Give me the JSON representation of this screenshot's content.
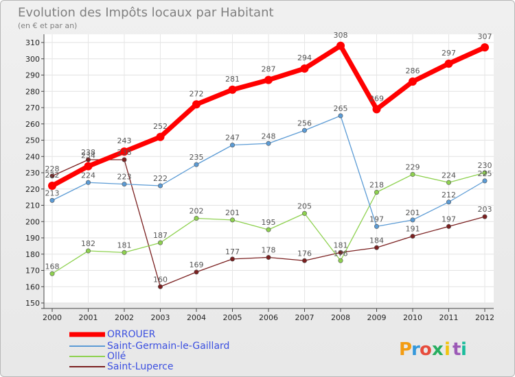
{
  "chart_data": {
    "type": "line",
    "title": "Evolution des Impôts locaux par Habitant",
    "subtitle": "(en € et par an)",
    "categories": [
      "2000",
      "2001",
      "2002",
      "2003",
      "2004",
      "2005",
      "2006",
      "2007",
      "2008",
      "2009",
      "2010",
      "2011",
      "2012"
    ],
    "ylim": [
      150,
      310
    ],
    "yticks": [
      150,
      160,
      170,
      180,
      190,
      200,
      210,
      220,
      230,
      240,
      250,
      260,
      270,
      280,
      290,
      300,
      310
    ],
    "grid": true,
    "legend_position": "bottom-left",
    "series": [
      {
        "name": "ORROUER",
        "color": "#ff0000",
        "values": [
          222,
          234,
          243,
          252,
          272,
          281,
          287,
          294,
          308,
          269,
          286,
          297,
          307
        ]
      },
      {
        "name": "Saint-Germain-le-Gaillard",
        "color": "#5b9bd5",
        "values": [
          213,
          224,
          223,
          222,
          235,
          247,
          248,
          256,
          265,
          197,
          201,
          212,
          225
        ]
      },
      {
        "name": "Ollé",
        "color": "#8ed14f",
        "values": [
          168,
          182,
          181,
          187,
          202,
          201,
          195,
          205,
          176,
          218,
          229,
          224,
          230
        ]
      },
      {
        "name": "Saint-Luperce",
        "color": "#7a1f1f",
        "values": [
          228,
          238,
          238,
          160,
          169,
          177,
          178,
          176,
          181,
          184,
          191,
          197,
          203
        ]
      }
    ]
  },
  "logo": {
    "letters": [
      "P",
      "r",
      "o",
      "x",
      "i",
      "t",
      "i"
    ],
    "colors": [
      "#f39c12",
      "#3498db",
      "#e74c3c",
      "#27ae60",
      "#f1c40f",
      "#9b59b6",
      "#1abc9c"
    ]
  }
}
